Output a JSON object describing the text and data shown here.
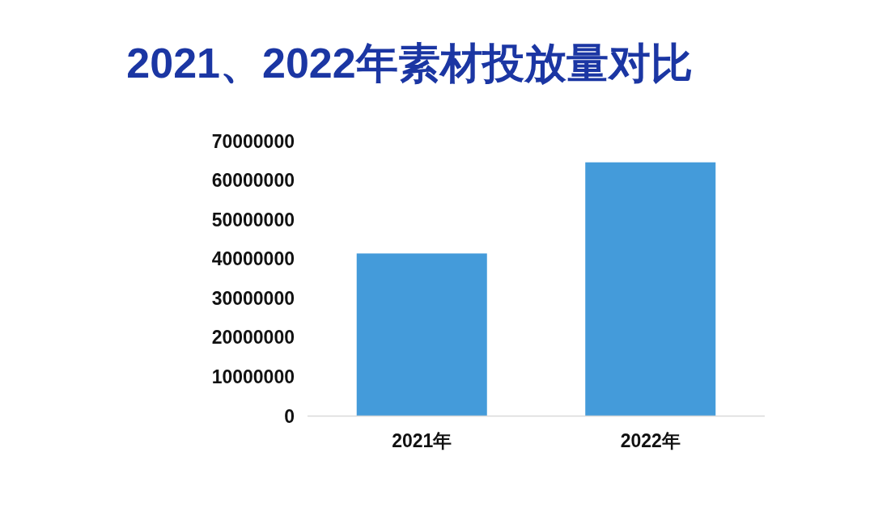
{
  "chart_data": {
    "type": "bar",
    "title": "2021、2022年素材投放量对比",
    "categories": [
      "2021年",
      "2022年"
    ],
    "values": [
      41400000,
      64600000
    ],
    "color": "#449bda",
    "ylim": [
      0,
      70000000
    ],
    "yticks": [
      0,
      10000000,
      20000000,
      30000000,
      40000000,
      50000000,
      60000000,
      70000000
    ]
  }
}
